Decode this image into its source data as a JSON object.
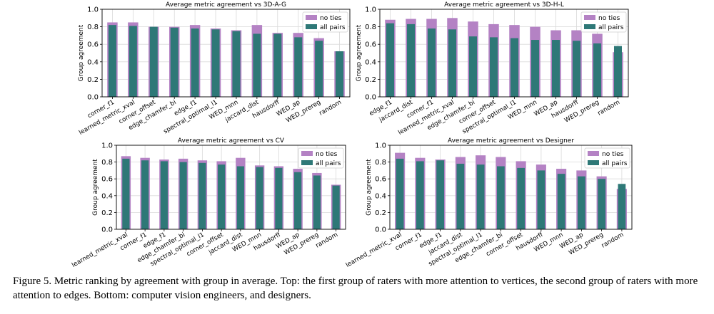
{
  "colors": {
    "no_ties": "#b482c4",
    "all_pairs": "#2e7877"
  },
  "chart_data": [
    {
      "type": "bar",
      "title": "Average metric agreement vs 3D-A-G",
      "xlabel": "",
      "ylabel": "Group agreement",
      "ylim": [
        0,
        1.0
      ],
      "yticks": [
        "0.0",
        "0.2",
        "0.4",
        "0.6",
        "0.8",
        "1.0"
      ],
      "grid": true,
      "legend": "top-right",
      "categories": [
        "corner_f1",
        "learned_metric_xval",
        "corner_offset",
        "edge_chamfer_bi",
        "edge_f1",
        "spectral_optimal_l1",
        "WED_mnn",
        "jaccard_dist",
        "hausdorff",
        "WED_ap",
        "WED_prereg",
        "random"
      ],
      "series": [
        {
          "name": "no ties",
          "values": [
            0.85,
            0.85,
            0.8,
            0.8,
            0.82,
            0.78,
            0.76,
            0.82,
            0.73,
            0.73,
            0.67,
            0.52
          ]
        },
        {
          "name": "all pairs",
          "values": [
            0.82,
            0.81,
            0.8,
            0.79,
            0.78,
            0.77,
            0.75,
            0.72,
            0.72,
            0.68,
            0.64,
            0.52
          ]
        }
      ]
    },
    {
      "type": "bar",
      "title": "Average metric agreement vs 3D-H-L",
      "xlabel": "",
      "ylabel": "Group agreement",
      "ylim": [
        0,
        1.0
      ],
      "yticks": [
        "0.0",
        "0.2",
        "0.4",
        "0.6",
        "0.8",
        "1.0"
      ],
      "grid": true,
      "legend": "top-right",
      "categories": [
        "edge_f1",
        "jaccard_dist",
        "corner_f1",
        "learned_metric_xval",
        "edge_chamfer_bi",
        "corner_offset",
        "spectral_optimal_l1",
        "WED_mnn",
        "WED_ap",
        "hausdorff",
        "WED_prereg",
        "random"
      ],
      "series": [
        {
          "name": "no ties",
          "values": [
            0.88,
            0.89,
            0.89,
            0.9,
            0.86,
            0.83,
            0.82,
            0.8,
            0.76,
            0.76,
            0.72,
            0.51
          ]
        },
        {
          "name": "all pairs",
          "values": [
            0.84,
            0.83,
            0.78,
            0.77,
            0.69,
            0.68,
            0.67,
            0.65,
            0.65,
            0.64,
            0.61,
            0.58
          ]
        }
      ]
    },
    {
      "type": "bar",
      "title": "Average metric agreement vs CV",
      "xlabel": "",
      "ylabel": "Group agreement",
      "ylim": [
        0,
        1.0
      ],
      "yticks": [
        "0.0",
        "0.2",
        "0.4",
        "0.6",
        "0.8",
        "1.0"
      ],
      "grid": true,
      "legend": "top-right",
      "categories": [
        "learned_metric_xval",
        "corner_f1",
        "edge_f1",
        "edge_chamfer_bi",
        "spectral_optimal_l1",
        "corner_offset",
        "jaccard_dist",
        "WED_mnn",
        "hausdorff",
        "WED_ap",
        "WED_prereg",
        "random"
      ],
      "series": [
        {
          "name": "no ties",
          "values": [
            0.87,
            0.85,
            0.83,
            0.84,
            0.82,
            0.81,
            0.85,
            0.76,
            0.75,
            0.72,
            0.67,
            0.53
          ]
        },
        {
          "name": "all pairs",
          "values": [
            0.84,
            0.82,
            0.81,
            0.8,
            0.79,
            0.77,
            0.75,
            0.74,
            0.73,
            0.68,
            0.64,
            0.52
          ]
        }
      ]
    },
    {
      "type": "bar",
      "title": "Average metric agreement vs Designer",
      "xlabel": "",
      "ylabel": "Group agreement",
      "ylim": [
        0,
        1.0
      ],
      "yticks": [
        "0.0",
        "0.2",
        "0.4",
        "0.6",
        "0.8",
        "1.0"
      ],
      "grid": true,
      "legend": "top-right",
      "categories": [
        "learned_metric_xval",
        "corner_f1",
        "edge_f1",
        "jaccard_dist",
        "spectral_optimal_l1",
        "edge_chamfer_bi",
        "corner_offset",
        "hausdorff",
        "WED_mnn",
        "WED_ap",
        "WED_prereg",
        "random"
      ],
      "series": [
        {
          "name": "no ties",
          "values": [
            0.91,
            0.85,
            0.83,
            0.86,
            0.88,
            0.86,
            0.81,
            0.77,
            0.72,
            0.7,
            0.63,
            0.48
          ]
        },
        {
          "name": "all pairs",
          "values": [
            0.84,
            0.81,
            0.82,
            0.78,
            0.77,
            0.75,
            0.73,
            0.7,
            0.66,
            0.63,
            0.6,
            0.54
          ]
        }
      ]
    }
  ],
  "caption": "Figure 5.  Metric ranking by agreement with group in average.  Top: the first group of raters with more attention to vertices, the second group of raters with more attention to edges.  Bottom: computer vision engineers, and designers."
}
